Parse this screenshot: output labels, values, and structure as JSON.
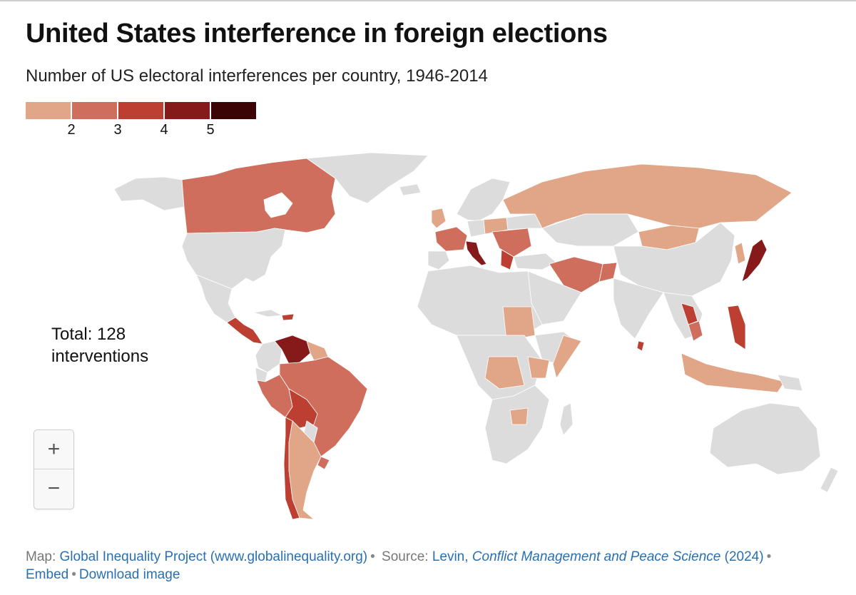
{
  "title": "United States interference in foreign elections",
  "subtitle": "Number of US electoral interferences per country, 1946-2014",
  "legend": {
    "colors": [
      "#e0a687",
      "#cf6e5d",
      "#bc3f31",
      "#86191a",
      "#3d0405"
    ],
    "labels": [
      "2",
      "3",
      "4",
      "5"
    ]
  },
  "total": {
    "line1": "Total: 128",
    "line2": "interventions"
  },
  "zoom": {
    "in_label": "+",
    "out_label": "−"
  },
  "footer": {
    "map_label": "Map: ",
    "map_link": "Global Inequality Project (www.globalinequality.org)",
    "source_label": " Source: ",
    "source_author": "Levin, ",
    "source_journal": "Conflict Management and Peace Science",
    "source_year": " (2024)",
    "embed": "Embed",
    "download": "Download image"
  },
  "colors": {
    "land": "#dcdcdc",
    "water": "#ffffff",
    "link": "#2a6fb0"
  }
}
